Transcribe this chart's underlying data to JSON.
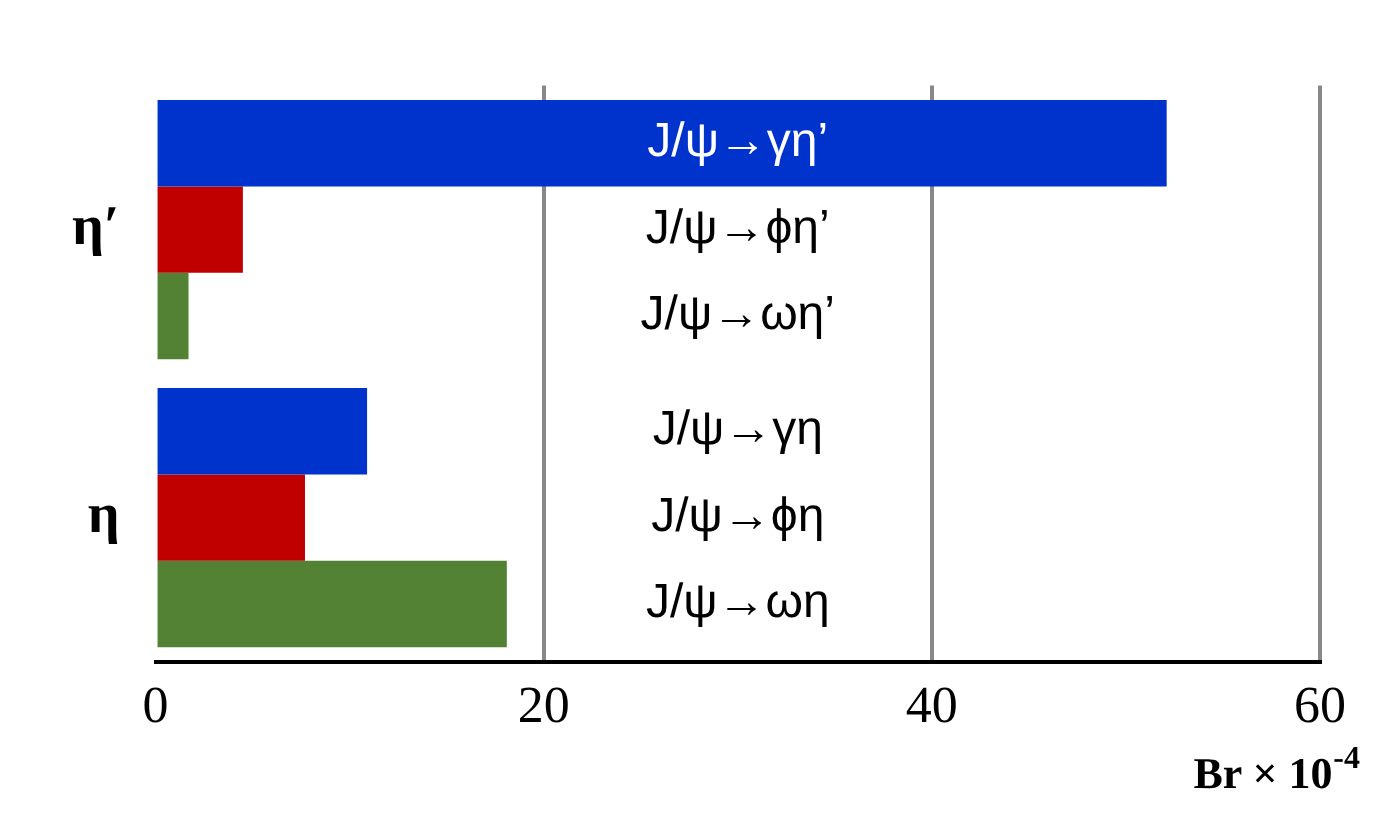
{
  "chart_data": {
    "type": "bar",
    "orientation": "horizontal",
    "categories": [
      "η′",
      "η"
    ],
    "series": [
      {
        "color": "#0033cc",
        "values": [
          52.1,
          10.9
        ]
      },
      {
        "color": "#c00000",
        "values": [
          4.5,
          7.7
        ]
      },
      {
        "color": "#548235",
        "values": [
          1.7,
          18.1
        ]
      }
    ],
    "xlim": [
      0,
      60
    ],
    "xticks": [
      0,
      20,
      40,
      60
    ],
    "xlabel": "Br × 10$^{-4}$",
    "grid": "x",
    "annotations": [
      "J/ψ→γη’",
      "J/ψ→ϕη’",
      "J/ψ→ωη’",
      "J/ψ→γη",
      "J/ψ→ϕη",
      "J/ψ→ωη"
    ]
  }
}
